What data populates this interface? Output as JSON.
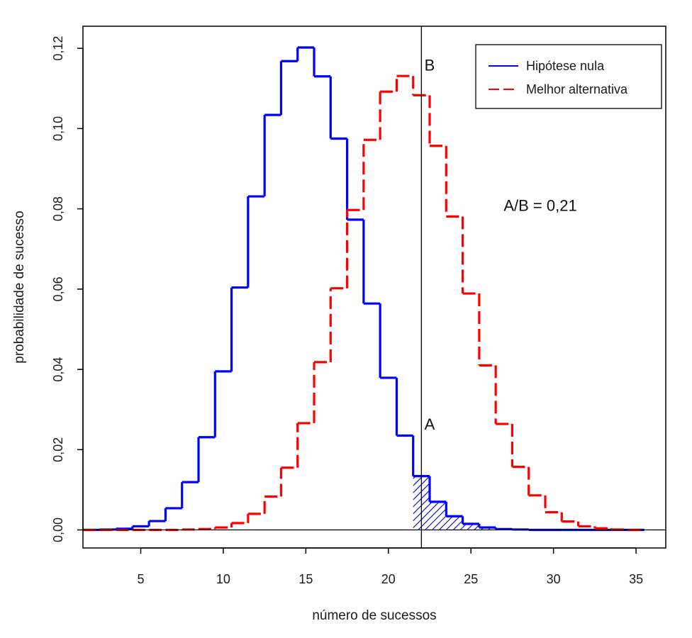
{
  "chart_data": {
    "type": "line",
    "step": true,
    "xlabel": "número de sucessos",
    "ylabel": "probabilidade de sucesso",
    "xlim": [
      1.5,
      36.8
    ],
    "ylim": [
      -0.0045,
      0.1255
    ],
    "xticks": [
      5,
      10,
      15,
      20,
      25,
      30,
      35
    ],
    "xtick_labels": [
      "5",
      "10",
      "15",
      "20",
      "25",
      "30",
      "35"
    ],
    "yticks": [
      0,
      0.02,
      0.04,
      0.06,
      0.08,
      0.1,
      0.12
    ],
    "ytick_labels": [
      "0,00",
      "0,02",
      "0,04",
      "0,06",
      "0,08",
      "0,10",
      "0,12"
    ],
    "x": [
      2,
      3,
      4,
      5,
      6,
      7,
      8,
      9,
      10,
      11,
      12,
      13,
      14,
      15,
      16,
      17,
      18,
      19,
      20,
      21,
      22,
      23,
      24,
      25,
      26,
      27,
      28,
      29,
      30,
      31,
      32,
      33,
      34,
      35
    ],
    "series": [
      {
        "name": "Hipótese nula",
        "color": "#0000ff",
        "style": "solid",
        "values": [
          0.0,
          0.0001,
          0.0003,
          0.0009,
          0.0022,
          0.0054,
          0.0119,
          0.0231,
          0.0395,
          0.0604,
          0.0831,
          0.1034,
          0.1168,
          0.1202,
          0.113,
          0.0975,
          0.0773,
          0.0564,
          0.0379,
          0.0235,
          0.0134,
          0.007,
          0.0034,
          0.0015,
          0.0006,
          0.0002,
          0.0001,
          0.0,
          0.0,
          0.0,
          0.0,
          0.0,
          0.0,
          0.0
        ]
      },
      {
        "name": "Melhor alternativa",
        "color": "#ff0000",
        "style": "dashed",
        "values": [
          0.0,
          0.0,
          0.0,
          0.0,
          0.0,
          0.0,
          0.0001,
          0.0002,
          0.0006,
          0.0017,
          0.004,
          0.0083,
          0.0155,
          0.0266,
          0.0418,
          0.0602,
          0.0797,
          0.0972,
          0.1092,
          0.1131,
          0.1083,
          0.0957,
          0.0781,
          0.0589,
          0.041,
          0.0264,
          0.0157,
          0.0086,
          0.0044,
          0.0021,
          0.0009,
          0.0004,
          0.0001,
          0.0
        ]
      }
    ],
    "reference_lines": {
      "vertical_x": 22,
      "horizontal_y": 0
    },
    "shaded_region": {
      "series": "Hipótese nula",
      "x_from": 22,
      "x_to": 35,
      "pattern": "hatched"
    },
    "annotations": [
      {
        "text": "A",
        "x": 22.5,
        "y": 0.025
      },
      {
        "text": "B",
        "x": 22.5,
        "y": 0.1145
      },
      {
        "text": "A/B = 0,21",
        "x": 29.2,
        "y": 0.0795
      }
    ],
    "legend": {
      "position": "top-right",
      "entries": [
        "Hipótese nula",
        "Melhor alternativa"
      ]
    }
  }
}
